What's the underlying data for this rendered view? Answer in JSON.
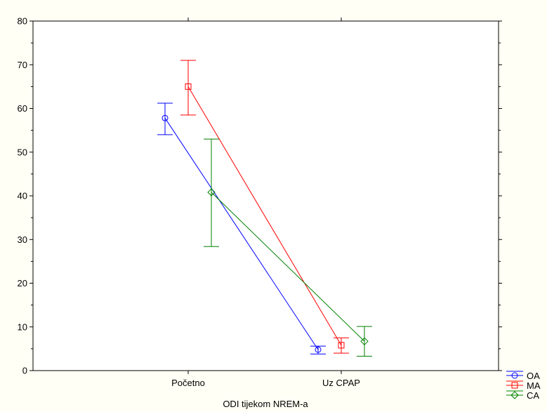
{
  "chart_data": {
    "type": "line",
    "xlabel": "ODI tijekom NREM-a",
    "ylabel": "",
    "categories": [
      "Početno",
      "Uz CPAP"
    ],
    "ylim": [
      0,
      80
    ],
    "yticks": [
      0,
      10,
      20,
      30,
      40,
      50,
      60,
      70,
      80
    ],
    "grid": false,
    "legend": "bottom-right",
    "error_bars": true,
    "series": [
      {
        "name": "OA",
        "color": "#0000ff",
        "marker": "circle",
        "values": [
          57.8,
          4.8
        ],
        "lower": [
          54.0,
          3.8
        ],
        "upper": [
          61.2,
          5.6
        ]
      },
      {
        "name": "MA",
        "color": "#ff0000",
        "marker": "square",
        "values": [
          65.0,
          5.8
        ],
        "lower": [
          58.5,
          4.0
        ],
        "upper": [
          71.0,
          7.5
        ]
      },
      {
        "name": "CA",
        "color": "#008000",
        "marker": "diamond",
        "values": [
          40.8,
          6.7
        ],
        "lower": [
          28.4,
          3.3
        ],
        "upper": [
          53.0,
          10.1
        ]
      }
    ]
  }
}
